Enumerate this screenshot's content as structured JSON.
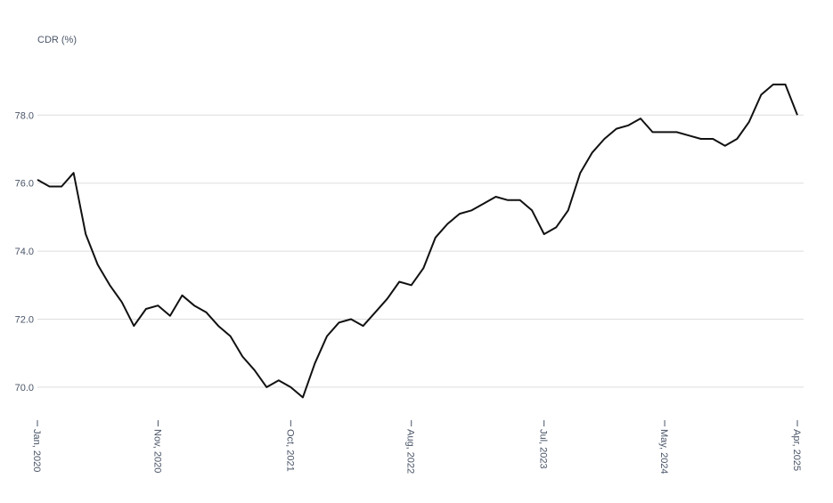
{
  "chart_data": {
    "type": "line",
    "y_label": "CDR (%)",
    "x": [
      "2020-01",
      "2020-02",
      "2020-03",
      "2020-04",
      "2020-05",
      "2020-06",
      "2020-07",
      "2020-08",
      "2020-09",
      "2020-10",
      "2020-11",
      "2020-12",
      "2021-01",
      "2021-02",
      "2021-03",
      "2021-04",
      "2021-05",
      "2021-06",
      "2021-07",
      "2021-08",
      "2021-09",
      "2021-10",
      "2021-11",
      "2021-12",
      "2022-01",
      "2022-02",
      "2022-03",
      "2022-04",
      "2022-05",
      "2022-06",
      "2022-07",
      "2022-08",
      "2022-09",
      "2022-10",
      "2022-11",
      "2022-12",
      "2023-01",
      "2023-02",
      "2023-03",
      "2023-04",
      "2023-05",
      "2023-06",
      "2023-07",
      "2023-08",
      "2023-09",
      "2023-10",
      "2023-11",
      "2023-12",
      "2024-01",
      "2024-02",
      "2024-03",
      "2024-04",
      "2024-05",
      "2024-06",
      "2024-07",
      "2024-08",
      "2024-09",
      "2024-10",
      "2024-11",
      "2024-12",
      "2025-01",
      "2025-02",
      "2025-03",
      "2025-04"
    ],
    "series": [
      {
        "name": "CDR",
        "color": "#111111",
        "values": [
          76.1,
          75.9,
          75.9,
          76.3,
          74.5,
          73.6,
          73.0,
          72.5,
          71.8,
          72.3,
          72.4,
          72.1,
          72.7,
          72.4,
          72.2,
          71.8,
          71.5,
          70.9,
          70.5,
          70.0,
          70.2,
          70.0,
          69.7,
          70.7,
          71.5,
          71.9,
          72.0,
          71.8,
          72.2,
          72.6,
          73.1,
          73.0,
          73.5,
          74.4,
          74.8,
          75.1,
          75.2,
          75.4,
          75.6,
          75.5,
          75.5,
          75.2,
          74.5,
          74.7,
          75.2,
          76.3,
          76.9,
          77.3,
          77.6,
          77.7,
          77.9,
          77.5,
          77.5,
          77.5,
          77.4,
          77.3,
          77.3,
          77.1,
          77.3,
          77.8,
          78.6,
          78.9,
          78.9,
          78.0
        ]
      }
    ],
    "ylim": [
      69.5,
      79.5
    ],
    "yticks": [
      {
        "value": 70,
        "label": "70.0"
      },
      {
        "value": 72,
        "label": "72.0"
      },
      {
        "value": 74,
        "label": "74.0"
      },
      {
        "value": 76,
        "label": "76.0"
      },
      {
        "value": 78,
        "label": "78.0"
      }
    ],
    "xticks": [
      {
        "value": "2020-01",
        "label": "Jan, 2020"
      },
      {
        "value": "2020-11",
        "label": "Nov, 2020"
      },
      {
        "value": "2021-10",
        "label": "Oct, 2021"
      },
      {
        "value": "2022-08",
        "label": "Aug, 2022"
      },
      {
        "value": "2023-07",
        "label": "Jul, 2023"
      },
      {
        "value": "2024-05",
        "label": "May, 2024"
      },
      {
        "value": "2025-04",
        "label": "Apr, 2025"
      }
    ],
    "grid": true
  }
}
